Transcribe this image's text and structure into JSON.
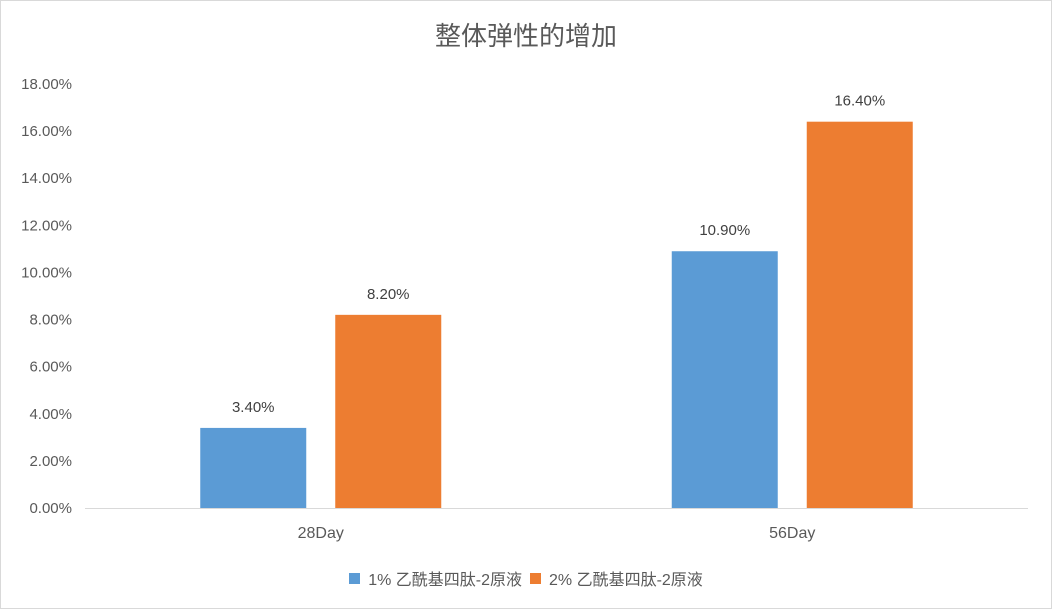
{
  "chart_data": {
    "type": "bar",
    "title": "整体弹性的增加",
    "categories": [
      "28Day",
      "56Day"
    ],
    "series": [
      {
        "name": "1% 乙酰基四肽-2原液",
        "values": [
          3.4,
          10.9
        ],
        "color": "#5b9bd5"
      },
      {
        "name": "2% 乙酰基四肽-2原液",
        "values": [
          8.2,
          16.4
        ],
        "color": "#ed7d31"
      }
    ],
    "value_format": "percent_2dp",
    "ylim": [
      0,
      18
    ],
    "y_ticks": [
      0,
      2,
      4,
      6,
      8,
      10,
      12,
      14,
      16,
      18
    ],
    "y_tick_labels": [
      "0.00%",
      "2.00%",
      "4.00%",
      "6.00%",
      "8.00%",
      "10.00%",
      "12.00%",
      "14.00%",
      "16.00%",
      "18.00%"
    ],
    "data_labels": [
      [
        "3.40%",
        "10.90%"
      ],
      [
        "8.20%",
        "16.40%"
      ]
    ],
    "grid": false,
    "legend_position": "bottom",
    "xlabel": "",
    "ylabel": ""
  }
}
